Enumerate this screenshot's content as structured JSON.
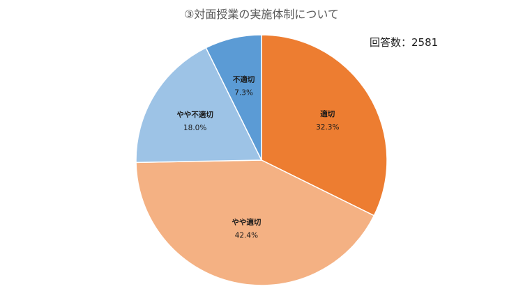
{
  "chart_data": {
    "type": "pie",
    "title": "③対面授業の実施体制について",
    "annotation": "回答数：2581",
    "start_angle_deg": 0,
    "direction": "clockwise",
    "slices": [
      {
        "label": "適切",
        "value": 32.3,
        "value_label": "32.3%",
        "color": "#ED7D31"
      },
      {
        "label": "やや適切",
        "value": 42.4,
        "value_label": "42.4%",
        "color": "#F4B183"
      },
      {
        "label": "やや不適切",
        "value": 18.0,
        "value_label": "18.0%",
        "color": "#9DC3E6"
      },
      {
        "label": "不適切",
        "value": 7.3,
        "value_label": "7.3%",
        "color": "#5B9BD5"
      }
    ],
    "border_color": "#ffffff",
    "legend": "none"
  }
}
